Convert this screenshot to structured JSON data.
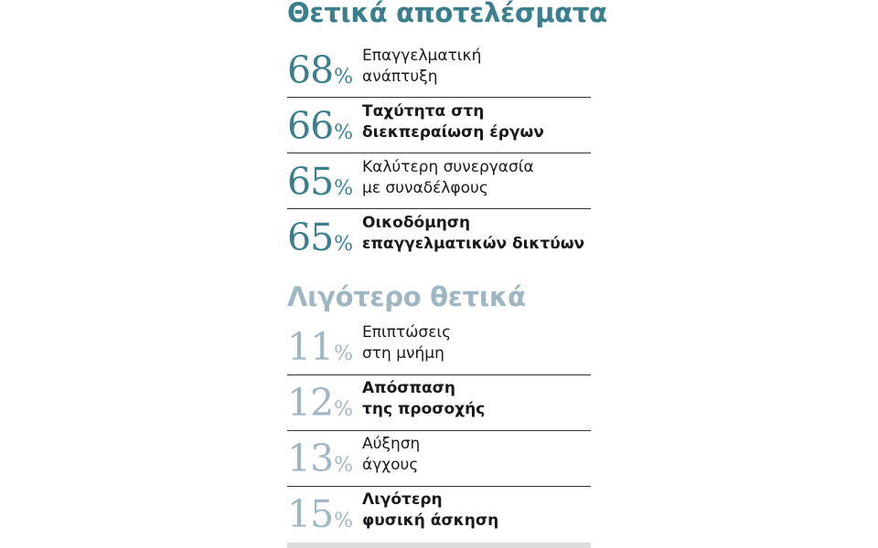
{
  "chart_data": {
    "type": "table",
    "groups": [
      {
        "title": "Θετικά αποτελέσματα",
        "rows": [
          {
            "value": 68,
            "unit": "%",
            "line1": "Επαγγελματική",
            "line2": "ανάπτυξη",
            "bold": false
          },
          {
            "value": 66,
            "unit": "%",
            "line1": "Ταχύτητα στη",
            "line2": "διεκπεραίωση έργων",
            "bold": true
          },
          {
            "value": 65,
            "unit": "%",
            "line1": "Καλύτερη συνεργασία",
            "line2": "με συναδέλφους",
            "bold": false
          },
          {
            "value": 65,
            "unit": "%",
            "line1": "Οικοδόμηση",
            "line2": "επαγγελματικών δικτύων",
            "bold": true
          }
        ]
      },
      {
        "title": "Λιγότερο θετικά",
        "rows": [
          {
            "value": 11,
            "unit": "%",
            "line1": "Επιπτώσεις",
            "line2": "στη μνήμη",
            "bold": false
          },
          {
            "value": 12,
            "unit": "%",
            "line1": "Απόσπαση",
            "line2": "της προσοχής",
            "bold": true
          },
          {
            "value": 13,
            "unit": "%",
            "line1": "Αύξηση",
            "line2": "άγχους",
            "bold": false
          },
          {
            "value": 15,
            "unit": "%",
            "line1": "Λιγότερη",
            "line2": "φυσική άσκηση",
            "bold": true
          }
        ]
      }
    ],
    "colors": {
      "positive": "#3b7f8f",
      "negative": "#9fb6c3",
      "text": "#1a1a1a",
      "rule": "#333333"
    }
  }
}
